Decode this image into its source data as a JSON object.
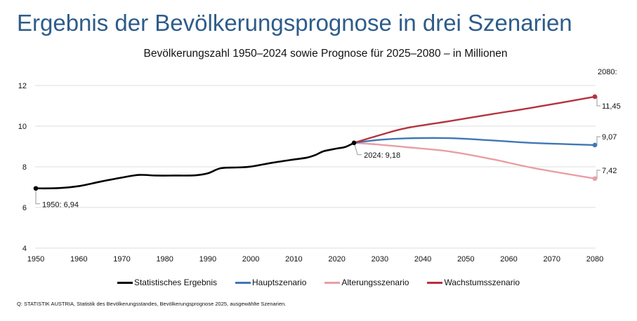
{
  "header": {
    "title": "Ergebnis der Bevölkerungsprognose in drei Szenarien"
  },
  "chart_data": {
    "type": "line",
    "title": "Bevölkerungszahl 1950–2024 sowie Prognose für 2025–2080 – in Millionen",
    "xlabel": "",
    "ylabel": "",
    "xlim": [
      1950,
      2080
    ],
    "ylim": [
      4,
      12
    ],
    "x_ticks": [
      "1950",
      "1960",
      "1970",
      "1980",
      "1990",
      "2000",
      "2010",
      "2020",
      "2030",
      "2040",
      "2050",
      "2060",
      "2070",
      "2080"
    ],
    "y_ticks": [
      "4",
      "6",
      "8",
      "10",
      "12"
    ],
    "grid": true,
    "legend_position": "bottom",
    "end_label_header": "2080:",
    "series": [
      {
        "name": "Statistisches Ergebnis",
        "color": "#000000",
        "x": [
          1950,
          1955,
          1960,
          1965,
          1970,
          1974,
          1978,
          1982,
          1987,
          1990,
          1993,
          1997,
          2000,
          2005,
          2010,
          2013,
          2015,
          2017,
          2020,
          2022,
          2024
        ],
        "values": [
          6.94,
          6.95,
          7.05,
          7.27,
          7.47,
          7.6,
          7.57,
          7.57,
          7.58,
          7.68,
          7.93,
          7.97,
          8.01,
          8.2,
          8.36,
          8.45,
          8.58,
          8.77,
          8.9,
          8.98,
          9.18
        ]
      },
      {
        "name": "Hauptszenario",
        "color": "#3f77b5",
        "x": [
          2024,
          2030,
          2036,
          2046,
          2056,
          2066,
          2080
        ],
        "values": [
          9.18,
          9.33,
          9.4,
          9.41,
          9.3,
          9.17,
          9.07
        ]
      },
      {
        "name": "Alterungsszenario",
        "color": "#e89ea5",
        "x": [
          2024,
          2030,
          2036,
          2046,
          2056,
          2066,
          2080
        ],
        "values": [
          9.18,
          9.09,
          8.97,
          8.76,
          8.38,
          7.93,
          7.42
        ]
      },
      {
        "name": "Wachstumsszenario",
        "color": "#b5323f",
        "x": [
          2024,
          2030,
          2036,
          2046,
          2056,
          2066,
          2080
        ],
        "values": [
          9.18,
          9.56,
          9.9,
          10.24,
          10.59,
          10.93,
          11.45
        ]
      }
    ],
    "annotations": [
      {
        "series": 0,
        "x": 1950,
        "y": 6.94,
        "text": "1950: 6,94"
      },
      {
        "series": 0,
        "x": 2024,
        "y": 9.18,
        "text": "2024: 9,18"
      },
      {
        "series": 3,
        "x": 2080,
        "y": 11.45,
        "text": "11,45"
      },
      {
        "series": 1,
        "x": 2080,
        "y": 9.07,
        "text": "9,07"
      },
      {
        "series": 2,
        "x": 2080,
        "y": 7.42,
        "text": "7,42"
      }
    ]
  },
  "source": "Q: STATISTIK AUSTRIA, Statistik des Bevölkerungsstandes, Bevölkerungsprognose 2025, ausgewählte Szenarien."
}
